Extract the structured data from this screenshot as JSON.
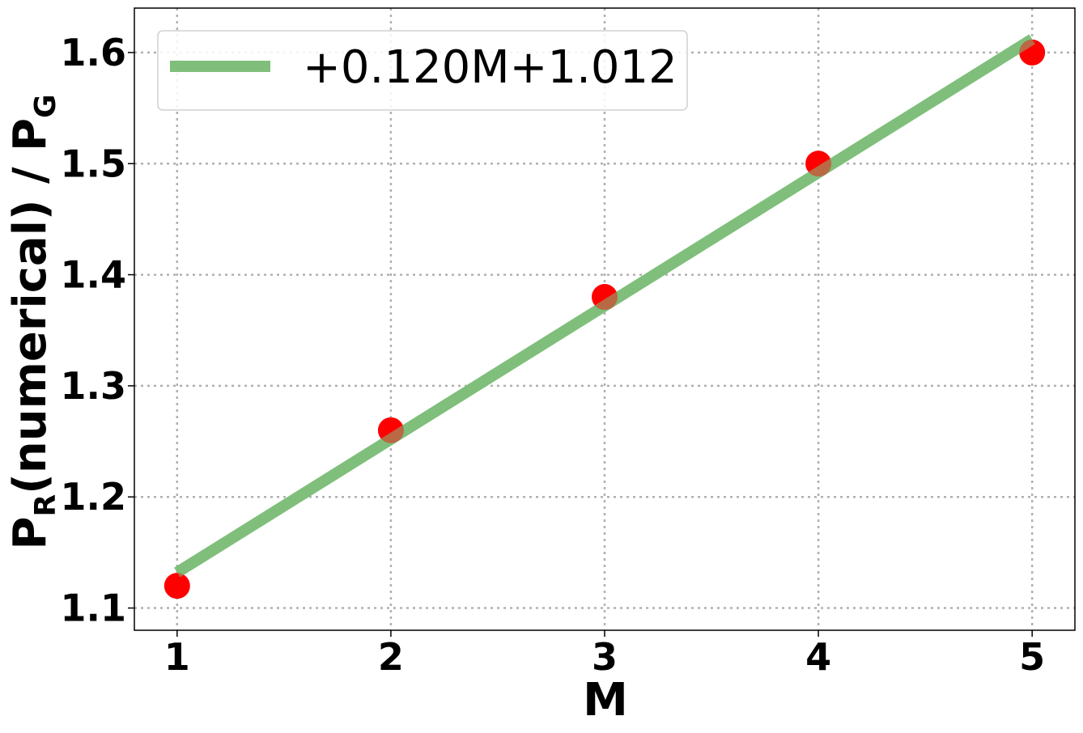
{
  "chart_data": {
    "type": "scatter",
    "xlabel": "M",
    "ylabel": {
      "p_r": "P",
      "sub_r": "R",
      "mid": "(numerical) / P",
      "sub_g": "G"
    },
    "xlim": [
      0.8,
      5.2
    ],
    "ylim": [
      1.08,
      1.64
    ],
    "x_ticks": [
      1,
      2,
      3,
      4,
      5
    ],
    "x_tick_labels": [
      "1",
      "2",
      "3",
      "4",
      "5"
    ],
    "y_ticks": [
      1.1,
      1.2,
      1.3,
      1.4,
      1.5,
      1.6
    ],
    "y_tick_labels": [
      "1.1",
      "1.2",
      "1.3",
      "1.4",
      "1.5",
      "1.6"
    ],
    "grid": true,
    "legend_position": "upper-left",
    "points": {
      "x": [
        1,
        2,
        3,
        4,
        5
      ],
      "y": [
        1.12,
        1.26,
        1.38,
        1.5,
        1.6
      ],
      "color": "#ff0000"
    },
    "fit_line": {
      "label": "+0.120M+1.012",
      "slope": 0.12,
      "intercept": 1.012,
      "x_range": [
        1,
        5
      ],
      "color": "#7fbf7b"
    }
  }
}
